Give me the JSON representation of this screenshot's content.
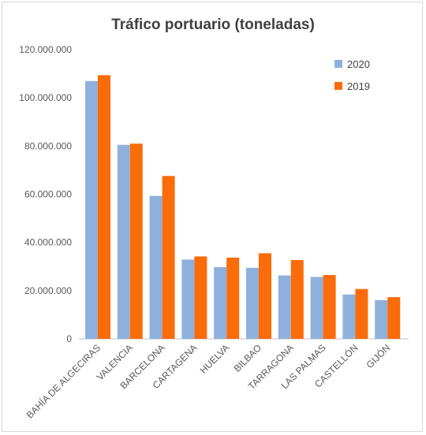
{
  "chart_data": {
    "type": "bar",
    "title": "Tráfico portuario (toneladas)",
    "xlabel": "",
    "ylabel": "",
    "ylim": [
      0,
      120000000
    ],
    "yticks": [
      0,
      20000000,
      40000000,
      60000000,
      80000000,
      100000000,
      120000000
    ],
    "ytick_labels": [
      "0",
      "20.000.000",
      "40.000.000",
      "60.000.000",
      "80.000.000",
      "100.000.000",
      "120.000.000"
    ],
    "categories": [
      "BAHÍA DE ALGECIRAS",
      "VALENCIA",
      "BARCELONA",
      "CARTAGENA",
      "HUELVA",
      "BILBAO",
      "TARRAGONA",
      "LAS PALMAS",
      "CASTELLÓN",
      "GIJÓN"
    ],
    "series": [
      {
        "name": "2020",
        "color": "#8fb0dc",
        "values": [
          107000000,
          80500000,
          59300000,
          32900000,
          29800000,
          29500000,
          26300000,
          25700000,
          18400000,
          16100000
        ]
      },
      {
        "name": "2019",
        "color": "#fa6c0a",
        "values": [
          109400000,
          81000000,
          67600000,
          34200000,
          33700000,
          35500000,
          32700000,
          26500000,
          20700000,
          17300000
        ]
      }
    ],
    "grid": false,
    "legend_position": "top-right"
  }
}
